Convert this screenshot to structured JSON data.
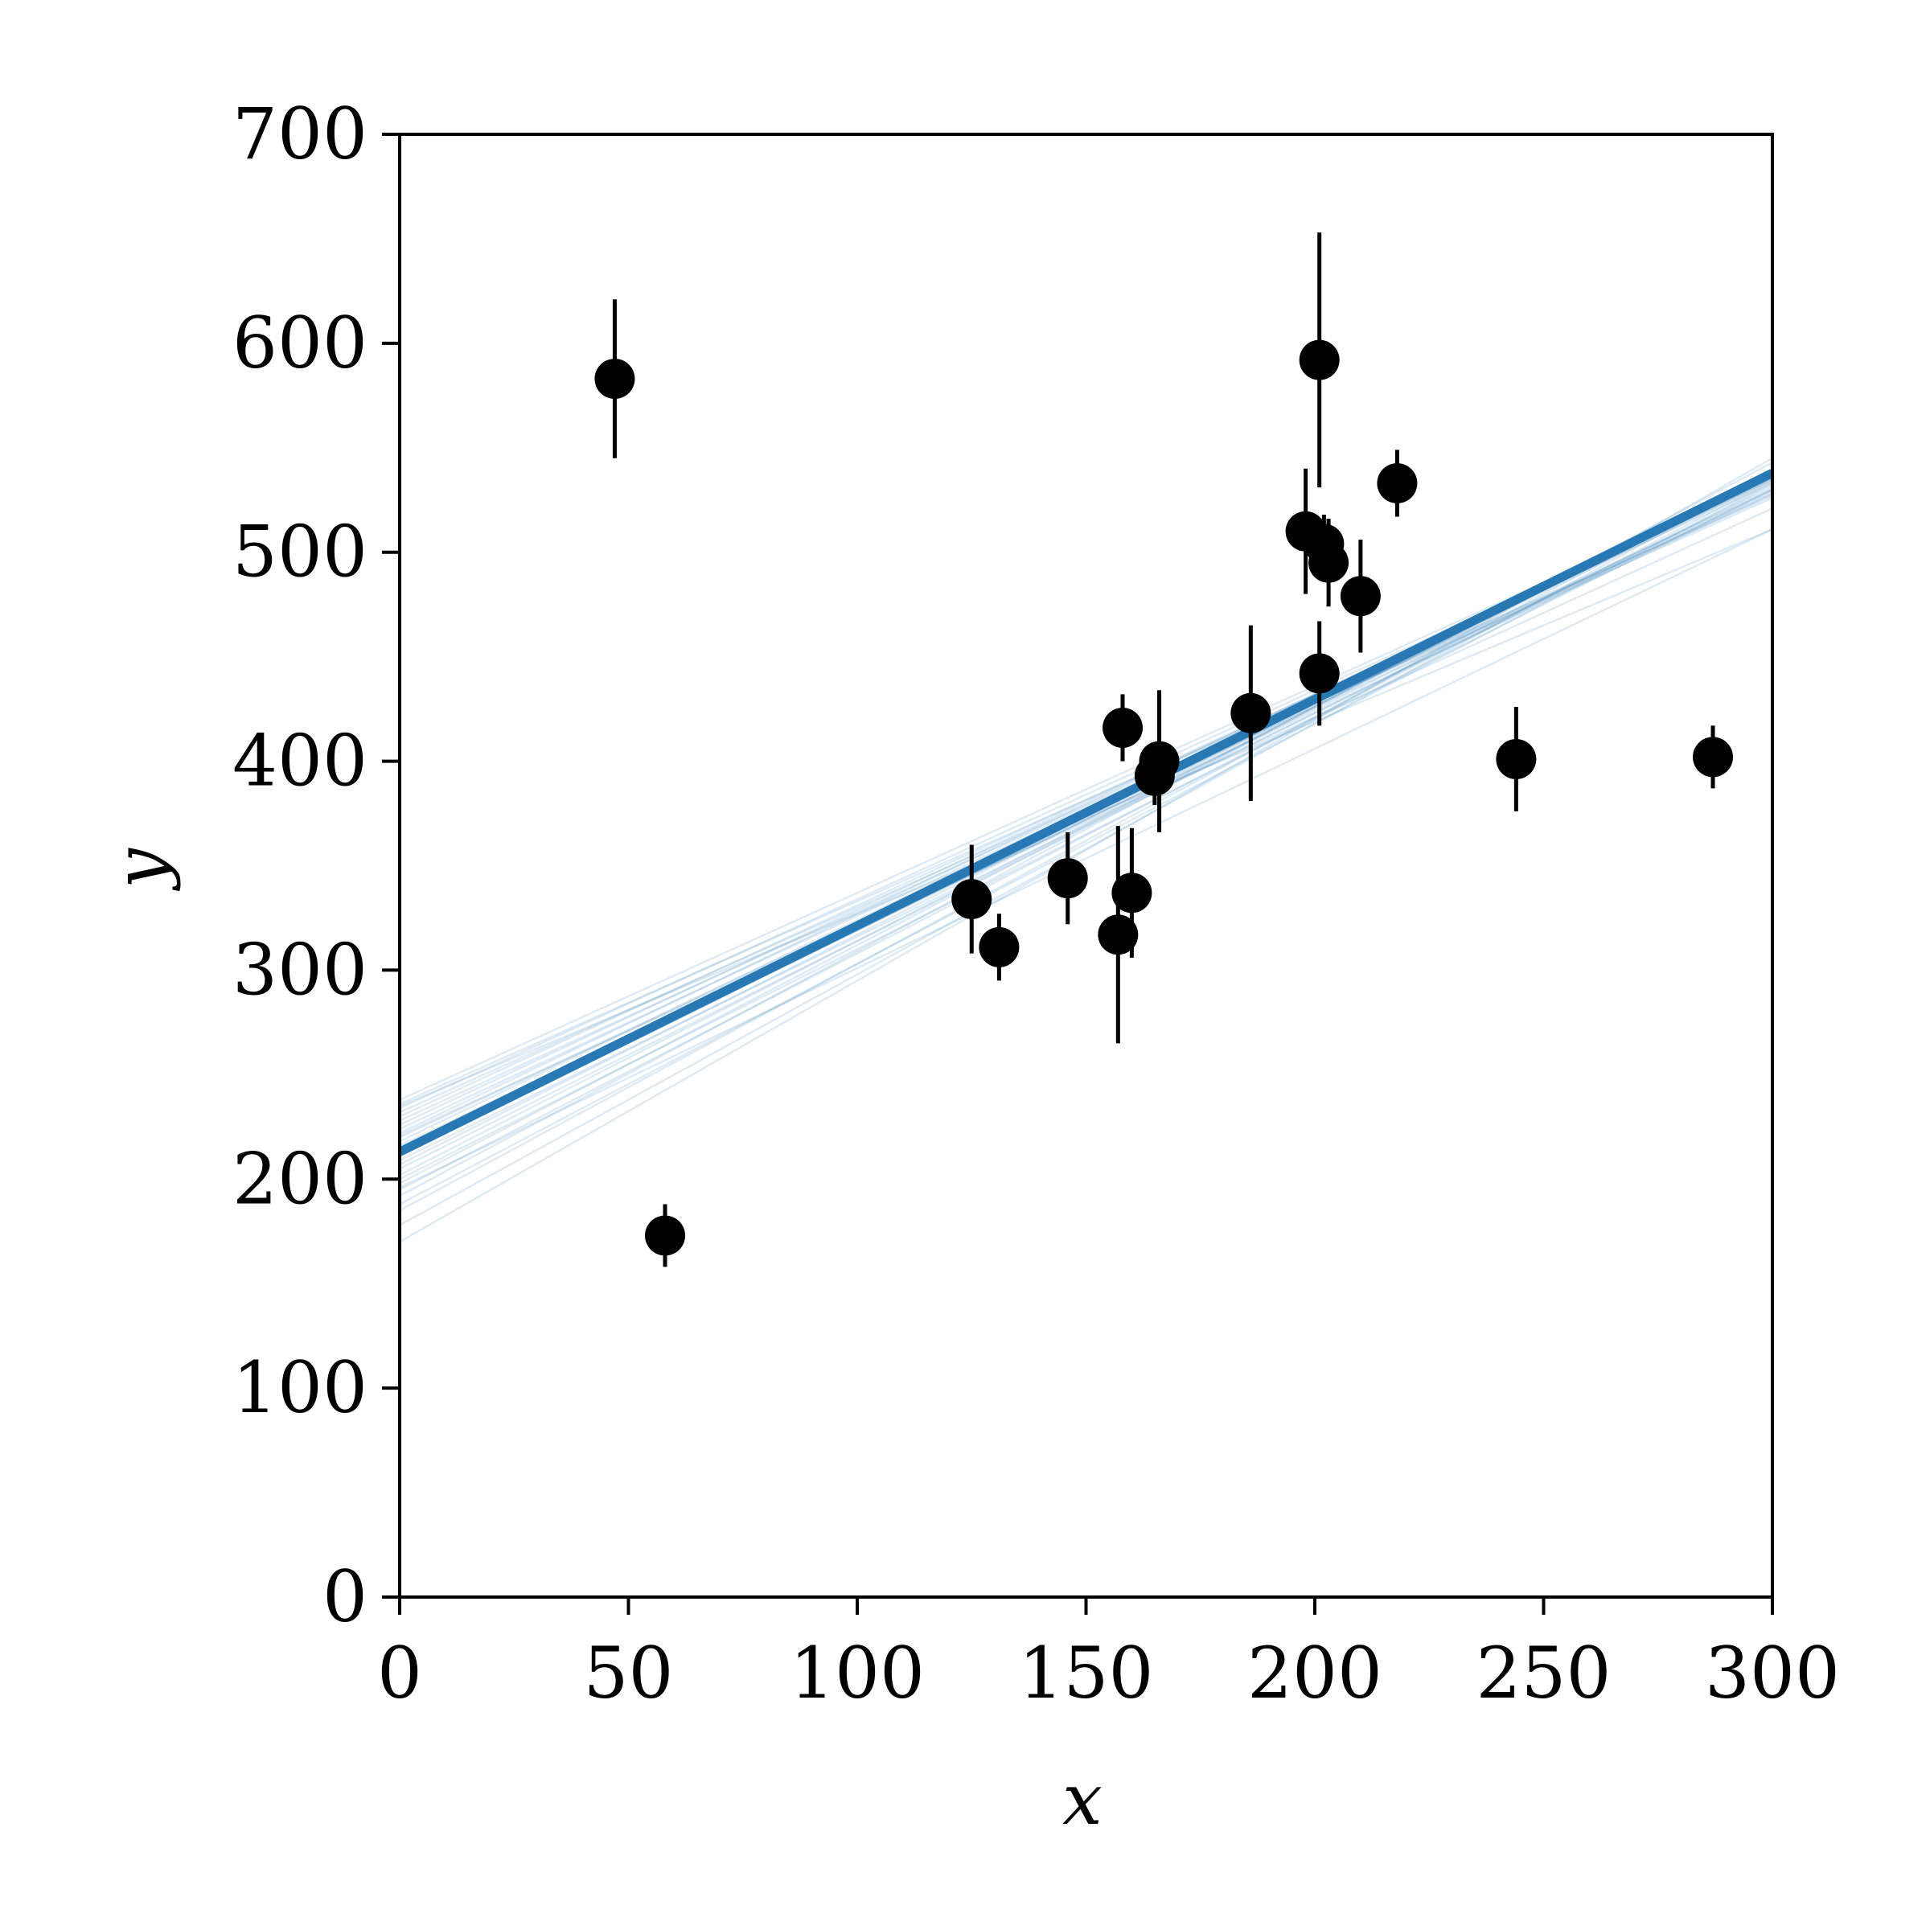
{
  "chart_data": {
    "type": "scatter",
    "title": "",
    "xlabel": "x",
    "ylabel": "y",
    "xlim": [
      0,
      300
    ],
    "ylim": [
      0,
      700
    ],
    "xticks": [
      0,
      50,
      100,
      150,
      200,
      250,
      300
    ],
    "yticks": [
      0,
      100,
      200,
      300,
      400,
      500,
      600,
      700
    ],
    "xtick_labels": [
      "0",
      "50",
      "100",
      "150",
      "200",
      "250",
      "300"
    ],
    "ytick_labels": [
      "0",
      "100",
      "200",
      "300",
      "400",
      "500",
      "600",
      "700"
    ],
    "grid": false,
    "legend": "none",
    "points": [
      {
        "x": 201,
        "y": 592,
        "yerr": 61
      },
      {
        "x": 244,
        "y": 401,
        "yerr": 25
      },
      {
        "x": 47,
        "y": 583,
        "yerr": 38
      },
      {
        "x": 287,
        "y": 402,
        "yerr": 15
      },
      {
        "x": 203,
        "y": 495,
        "yerr": 21
      },
      {
        "x": 58,
        "y": 173,
        "yerr": 15
      },
      {
        "x": 210,
        "y": 479,
        "yerr": 27
      },
      {
        "x": 202,
        "y": 504,
        "yerr": 14
      },
      {
        "x": 198,
        "y": 510,
        "yerr": 30
      },
      {
        "x": 158,
        "y": 416,
        "yerr": 16
      },
      {
        "x": 165,
        "y": 393,
        "yerr": 14
      },
      {
        "x": 201,
        "y": 442,
        "yerr": 25
      },
      {
        "x": 157,
        "y": 317,
        "yerr": 52
      },
      {
        "x": 131,
        "y": 311,
        "yerr": 16
      },
      {
        "x": 166,
        "y": 400,
        "yerr": 34
      },
      {
        "x": 160,
        "y": 337,
        "yerr": 31
      },
      {
        "x": 186,
        "y": 423,
        "yerr": 42
      },
      {
        "x": 125,
        "y": 334,
        "yerr": 26
      },
      {
        "x": 218,
        "y": 533,
        "yerr": 16
      },
      {
        "x": 146,
        "y": 344,
        "yerr": 22
      }
    ],
    "fit_line": {
      "intercept": 213,
      "slope": 1.083
    },
    "posterior_samples": [
      {
        "intercept": 170,
        "slope": 1.25
      },
      {
        "intercept": 178,
        "slope": 1.2
      },
      {
        "intercept": 185,
        "slope": 1.18
      },
      {
        "intercept": 188,
        "slope": 1.15
      },
      {
        "intercept": 192,
        "slope": 1.17
      },
      {
        "intercept": 195,
        "slope": 1.13
      },
      {
        "intercept": 198,
        "slope": 1.14
      },
      {
        "intercept": 200,
        "slope": 1.1
      },
      {
        "intercept": 202,
        "slope": 1.12
      },
      {
        "intercept": 205,
        "slope": 1.09
      },
      {
        "intercept": 207,
        "slope": 1.1
      },
      {
        "intercept": 209,
        "slope": 1.07
      },
      {
        "intercept": 211,
        "slope": 1.08
      },
      {
        "intercept": 213,
        "slope": 1.06
      },
      {
        "intercept": 215,
        "slope": 1.07
      },
      {
        "intercept": 216,
        "slope": 1.04
      },
      {
        "intercept": 218,
        "slope": 1.06
      },
      {
        "intercept": 220,
        "slope": 1.03
      },
      {
        "intercept": 222,
        "slope": 1.05
      },
      {
        "intercept": 224,
        "slope": 1.02
      },
      {
        "intercept": 226,
        "slope": 1.03
      },
      {
        "intercept": 228,
        "slope": 1.0
      },
      {
        "intercept": 230,
        "slope": 1.01
      },
      {
        "intercept": 232,
        "slope": 0.98
      },
      {
        "intercept": 234,
        "slope": 1.0
      },
      {
        "intercept": 236,
        "slope": 0.97
      },
      {
        "intercept": 238,
        "slope": 0.99
      },
      {
        "intercept": 235,
        "slope": 0.92
      },
      {
        "intercept": 221,
        "slope": 1.0
      },
      {
        "intercept": 196,
        "slope": 1.05
      }
    ],
    "colors": {
      "points": "#000000",
      "fit": "#2878b4",
      "samples": "#2878b4"
    }
  }
}
